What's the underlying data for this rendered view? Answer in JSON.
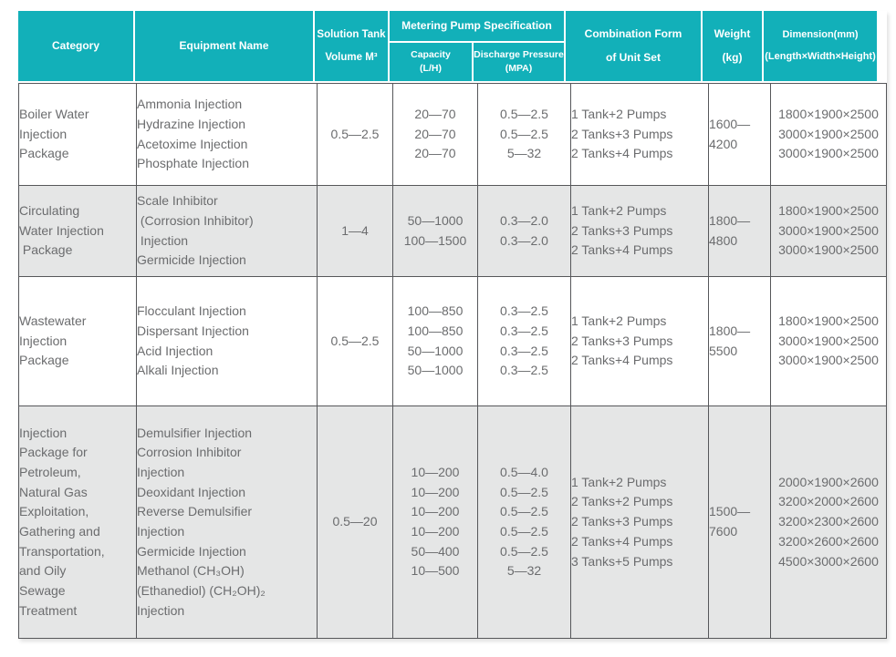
{
  "colors": {
    "header_teal": "#12b0b9",
    "header_text": "#ffffff",
    "body_text": "#6b6c6e",
    "border": "#56575a",
    "alt_row_bg": "#e5e6e6"
  },
  "header": {
    "category": "Category",
    "equipment_name": "Equipment Name",
    "solution_tank": "Solution Tank\nVolume M³",
    "metering_pump": "Metering Pump Specification",
    "capacity": "Capacity\n(L/H)",
    "discharge_pressure": "Discharge Pressure\n(MPA)",
    "combination_form": "Combination Form\nof Unit Set",
    "weight": "Weight\n(kg)",
    "dimension": "Dimension(mm)\n(Length×Width×Height)"
  },
  "rows": [
    {
      "category": "Boiler Water\nInjection\nPackage",
      "equipment": "Ammonia Injection\nHydrazine Injection\nAcetoxime Injection\nPhosphate Injection",
      "tank_volume": "0.5—2.5",
      "capacity": "20—70\n20—70\n20—70",
      "discharge": "0.5—2.5\n0.5—2.5\n5—32",
      "combination": "1 Tank+2 Pumps\n2 Tanks+3 Pumps\n2 Tanks+4 Pumps",
      "weight": "1600—\n4200",
      "dimension": "1800×1900×2500\n3000×1900×2500\n3000×1900×2500"
    },
    {
      "category": "Circulating\nWater Injection\n Package",
      "equipment": "Scale Inhibitor\n (Corrosion Inhibitor)\n Injection\nGermicide Injection",
      "tank_volume": "1—4",
      "capacity": "50—1000\n100—1500",
      "discharge": "0.3—2.0\n0.3—2.0",
      "combination": "1 Tank+2 Pumps\n2 Tanks+3 Pumps\n2 Tanks+4 Pumps",
      "weight": "1800—\n4800",
      "dimension": "1800×1900×2500\n3000×1900×2500\n3000×1900×2500"
    },
    {
      "category": "Wastewater\nInjection\nPackage",
      "equipment": "Flocculant Injection\nDispersant Injection\nAcid Injection\nAlkali Injection",
      "tank_volume": "0.5—2.5",
      "capacity": "100—850\n100—850\n50—1000\n50—1000",
      "discharge": "0.3—2.5\n0.3—2.5\n0.3—2.5\n0.3—2.5",
      "combination": "1 Tank+2 Pumps\n2 Tanks+3 Pumps\n2 Tanks+4 Pumps",
      "weight": "1800—\n5500",
      "dimension": "1800×1900×2500\n3000×1900×2500\n3000×1900×2500"
    },
    {
      "category": "Injection\nPackage for\nPetroleum,\nNatural Gas\nExploitation,\nGathering and\nTransportation,\nand Oily\nSewage\nTreatment",
      "equipment": "Demulsifier Injection\nCorrosion Inhibitor\nInjection\nDeoxidant Injection\nReverse Demulsifier\nInjection\nGermicide Injection\nMethanol (CH₃OH)\n(Ethanediol) (CH₂OH)₂\nInjection",
      "tank_volume": "0.5—20",
      "capacity": "10—200\n10—200\n10—200\n10—200\n50—400\n10—500",
      "discharge": "0.5—4.0\n0.5—2.5\n0.5—2.5\n0.5—2.5\n0.5—2.5\n5—32",
      "combination": "1 Tank+2 Pumps\n2 Tanks+2 Pumps\n2 Tanks+3 Pumps\n2 Tanks+4 Pumps\n3 Tanks+5 Pumps",
      "weight": "1500—\n7600",
      "dimension": "2000×1900×2600\n3200×2000×2600\n3200×2300×2600\n3200×2600×2600\n4500×3000×2600"
    }
  ]
}
